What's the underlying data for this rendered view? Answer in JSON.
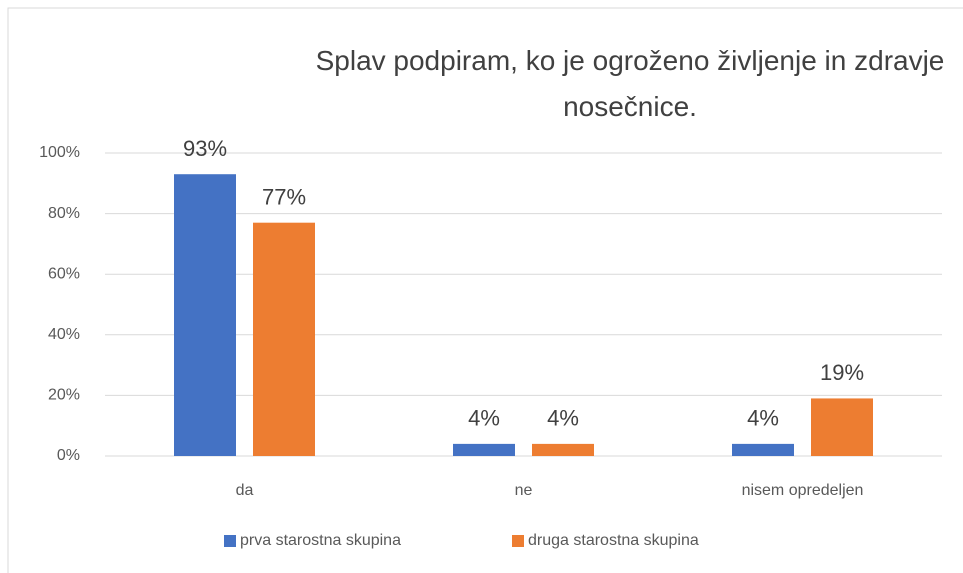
{
  "chart_data": {
    "type": "bar",
    "title": "Splav podpiram, ko je ogroženo življenje in zdravje nosečnice.",
    "categories": [
      "da",
      "ne",
      "nisem opredeljen"
    ],
    "series": [
      {
        "name": "prva starostna skupina",
        "color": "#4472c4",
        "values": [
          93,
          4,
          4
        ],
        "value_labels": [
          "93%",
          "4%",
          "4%"
        ]
      },
      {
        "name": "druga starostna skupina",
        "color": "#ed7d31",
        "values": [
          77,
          4,
          19
        ],
        "value_labels": [
          "77%",
          "4%",
          "19%"
        ]
      }
    ],
    "ylim": [
      0,
      100
    ],
    "yticks": [
      {
        "value": 0,
        "label": "0%"
      },
      {
        "value": 20,
        "label": "20%"
      },
      {
        "value": 40,
        "label": "40%"
      },
      {
        "value": 60,
        "label": "60%"
      },
      {
        "value": 80,
        "label": "80%"
      },
      {
        "value": 100,
        "label": "100%"
      }
    ],
    "grid": true,
    "legend": "bottom"
  }
}
